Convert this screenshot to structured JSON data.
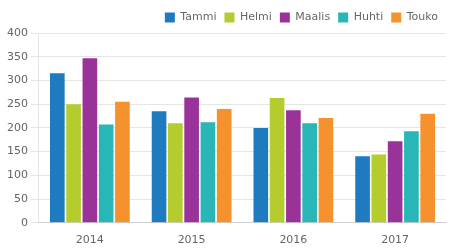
{
  "chart_data": {
    "type": "bar",
    "categories": [
      "2014",
      "2015",
      "2016",
      "2017"
    ],
    "series": [
      {
        "name": "Tammi",
        "color": "#1f7bbf",
        "values": [
          315,
          235,
          200,
          140
        ]
      },
      {
        "name": "Helmi",
        "color": "#b5cc2e",
        "values": [
          250,
          210,
          263,
          144
        ]
      },
      {
        "name": "Maalis",
        "color": "#993399",
        "values": [
          347,
          264,
          237,
          172
        ]
      },
      {
        "name": "Huhti",
        "color": "#29b6b6",
        "values": [
          207,
          212,
          210,
          193
        ]
      },
      {
        "name": "Touko",
        "color": "#f5922e",
        "values": [
          255,
          240,
          221,
          230
        ]
      }
    ],
    "ylim": [
      0,
      400
    ],
    "yticks": [
      0,
      50,
      100,
      150,
      200,
      250,
      300,
      350,
      400
    ],
    "grid": true,
    "legend": "upper right"
  }
}
